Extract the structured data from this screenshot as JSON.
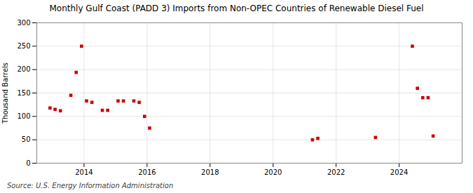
{
  "chart_data": {
    "type": "scatter",
    "title": "Monthly Gulf Coast (PADD 3) Imports from Non-OPEC Countries of Renewable Diesel Fuel",
    "ylabel": "Thousand Barrels",
    "annotation": "Source: U.S. Energy Information Administration",
    "x": [
      2012.92,
      2013.08,
      2013.25,
      2013.58,
      2013.75,
      2013.92,
      2014.08,
      2014.25,
      2014.58,
      2014.75,
      2015.08,
      2015.25,
      2015.58,
      2015.75,
      2015.92,
      2016.08,
      2021.25,
      2021.42,
      2023.25,
      2024.42,
      2024.58,
      2024.75,
      2024.92,
      2025.08
    ],
    "values": [
      118,
      115,
      112,
      145,
      194,
      250,
      133,
      130,
      113,
      113,
      133,
      133,
      133,
      130,
      100,
      75,
      50,
      53,
      55,
      250,
      160,
      140,
      140,
      58
    ],
    "color": "#cc0000",
    "marker": "square",
    "xlim": [
      2012.5,
      2026.0
    ],
    "xticks": [
      2014,
      2016,
      2018,
      2020,
      2022,
      2024
    ],
    "ylim": [
      0,
      300
    ],
    "yticks": [
      0,
      50,
      100,
      150,
      200,
      250,
      300
    ],
    "grid": true
  }
}
